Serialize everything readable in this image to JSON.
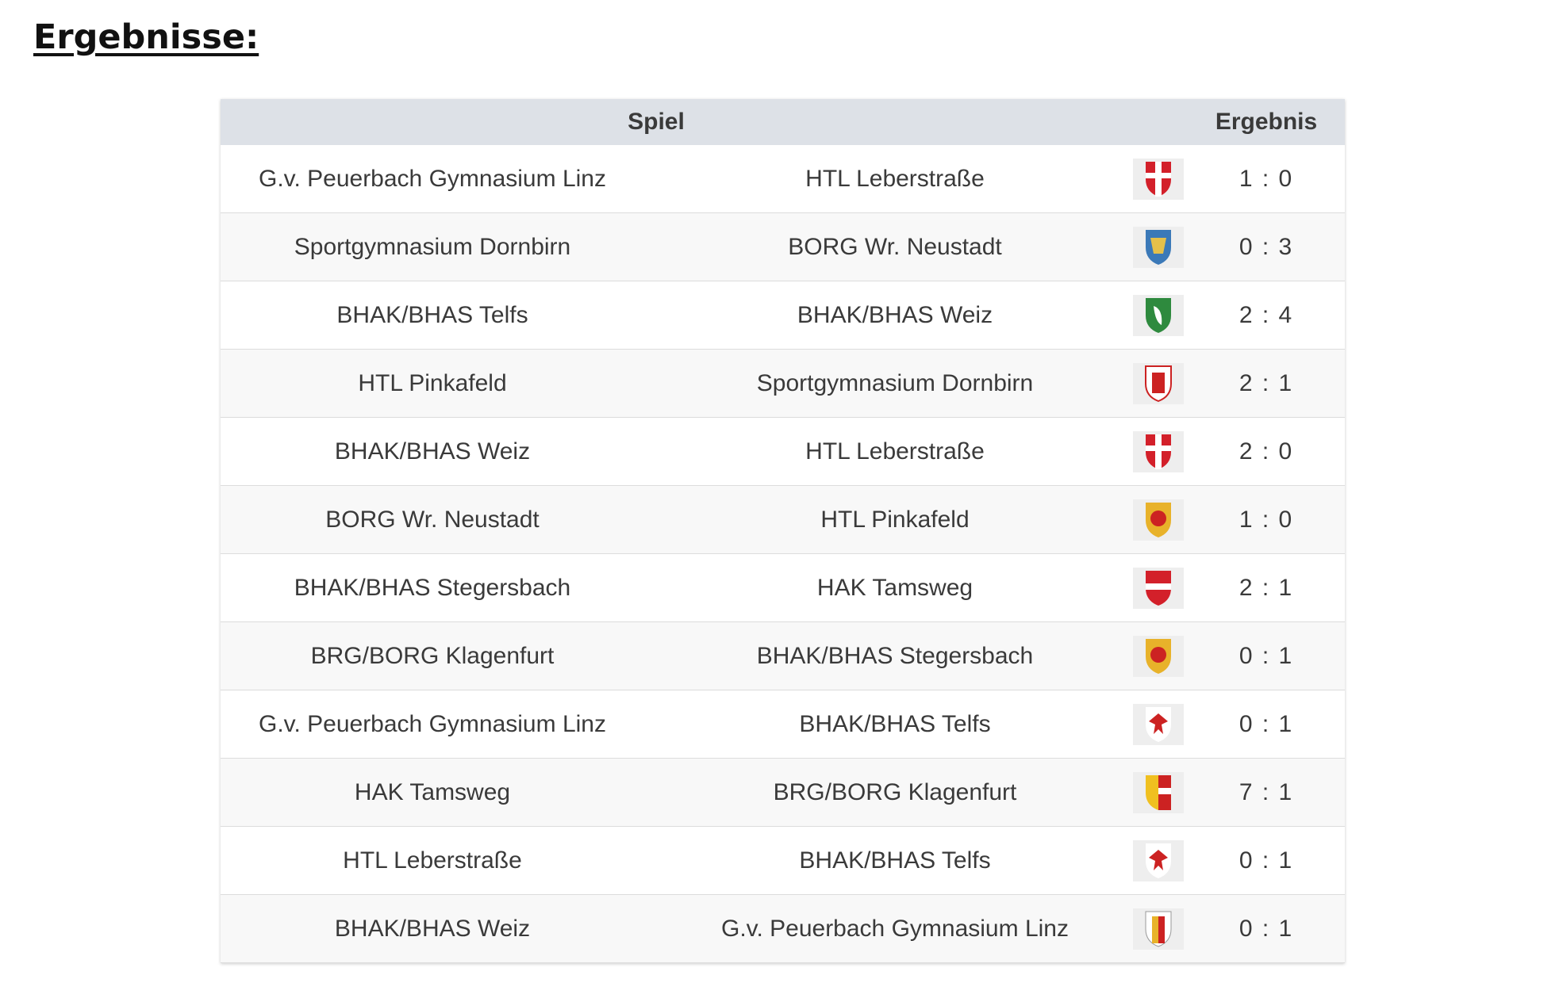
{
  "title": "Ergebnisse:",
  "table": {
    "header": [
      "Spiel",
      "Ergebnis"
    ],
    "rows": [
      [
        "G.v. Peuerbach Gymnasium Linz",
        "HTL Leberstraße",
        "1 : 0"
      ],
      [
        "Sportgymnasium Dornbirn",
        "BORG Wr. Neustadt",
        "0 : 3"
      ],
      [
        "BHAK/BHAS Telfs",
        "BHAK/BHAS Weiz",
        "2 : 4"
      ],
      [
        "HTL Pinkafeld",
        "Sportgymnasium Dornbirn",
        "2 : 1"
      ],
      [
        "BHAK/BHAS Weiz",
        "HTL Leberstraße",
        "2 : 0"
      ],
      [
        "BORG Wr. Neustadt",
        "HTL Pinkafeld",
        "1 : 0"
      ],
      [
        "BHAK/BHAS Stegersbach",
        "HAK Tamsweg",
        "2 : 1"
      ],
      [
        "BRG/BORG Klagenfurt",
        "BHAK/BHAS Stegersbach",
        "0 : 1"
      ],
      [
        "G.v. Peuerbach Gymnasium Linz",
        "BHAK/BHAS Telfs",
        "0 : 1"
      ],
      [
        "HAK Tamsweg",
        "BRG/BORG Klagenfurt",
        "7 : 1"
      ],
      [
        "HTL Leberstraße",
        "BHAK/BHAS Telfs",
        "0 : 1"
      ],
      [
        "BHAK/BHAS Weiz",
        "G.v. Peuerbach Gymnasium Linz",
        "0 : 1"
      ]
    ]
  }
}
